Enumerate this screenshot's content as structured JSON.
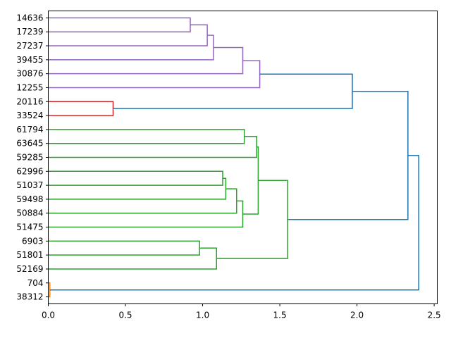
{
  "chart_data": {
    "type": "dendrogram",
    "orientation": "left",
    "xlim": [
      0,
      2.52
    ],
    "x_ticks": [
      0.0,
      0.5,
      1.0,
      1.5,
      2.0,
      2.5
    ],
    "x_tick_labels": [
      "0.0",
      "0.5",
      "1.0",
      "1.5",
      "2.0",
      "2.5"
    ],
    "title": "",
    "xlabel": "",
    "ylabel": "",
    "leaves": [
      "14636",
      "17239",
      "27237",
      "39455",
      "30876",
      "12255",
      "20116",
      "33524",
      "61794",
      "63645",
      "59285",
      "62996",
      "51037",
      "59498",
      "50884",
      "51475",
      "6903",
      "51801",
      "52169",
      "704",
      "38312"
    ],
    "colors": {
      "purple": "#9467bd",
      "red": "#d62728",
      "green": "#2ca02c",
      "orange": "#ff7f0e",
      "blue": "#1f77b4"
    },
    "merges": [
      {
        "left": [
          0
        ],
        "right": [
          1
        ],
        "height": 0.92,
        "color": "purple"
      },
      {
        "left": [
          0,
          1
        ],
        "right": [
          2
        ],
        "height": 1.03,
        "color": "purple"
      },
      {
        "left": [
          0,
          1,
          2
        ],
        "right": [
          3
        ],
        "height": 1.07,
        "color": "purple"
      },
      {
        "left": [
          0,
          1,
          2,
          3
        ],
        "right": [
          4
        ],
        "height": 1.26,
        "color": "purple"
      },
      {
        "left": [
          0,
          1,
          2,
          3,
          4
        ],
        "right": [
          5
        ],
        "height": 1.37,
        "color": "purple"
      },
      {
        "left": [
          6
        ],
        "right": [
          7
        ],
        "height": 0.42,
        "color": "red"
      },
      {
        "left": [
          0,
          1,
          2,
          3,
          4,
          5
        ],
        "right": [
          6,
          7
        ],
        "height": 1.97,
        "color": "blue"
      },
      {
        "left": [
          8
        ],
        "right": [
          9
        ],
        "height": 1.27,
        "color": "green"
      },
      {
        "left": [
          8,
          9
        ],
        "right": [
          10
        ],
        "height": 1.35,
        "color": "green"
      },
      {
        "left": [
          11
        ],
        "right": [
          12
        ],
        "height": 1.13,
        "color": "green"
      },
      {
        "left": [
          11,
          12
        ],
        "right": [
          13
        ],
        "height": 1.15,
        "color": "green"
      },
      {
        "left": [
          11,
          12,
          13
        ],
        "right": [
          14
        ],
        "height": 1.22,
        "color": "green"
      },
      {
        "left": [
          11,
          12,
          13,
          14
        ],
        "right": [
          15
        ],
        "height": 1.26,
        "color": "green"
      },
      {
        "left": [
          8,
          9,
          10
        ],
        "right": [
          11,
          12,
          13,
          14,
          15
        ],
        "height": 1.36,
        "color": "green"
      },
      {
        "left": [
          16
        ],
        "right": [
          17
        ],
        "height": 0.98,
        "color": "green"
      },
      {
        "left": [
          16,
          17
        ],
        "right": [
          18
        ],
        "height": 1.09,
        "color": "green"
      },
      {
        "left": [
          8,
          9,
          10,
          11,
          12,
          13,
          14,
          15
        ],
        "right": [
          16,
          17,
          18
        ],
        "height": 1.55,
        "color": "green"
      },
      {
        "left": [
          0,
          1,
          2,
          3,
          4,
          5,
          6,
          7
        ],
        "right": [
          8,
          9,
          10,
          11,
          12,
          13,
          14,
          15,
          16,
          17,
          18
        ],
        "height": 2.33,
        "color": "blue"
      },
      {
        "left": [
          19
        ],
        "right": [
          20
        ],
        "height": 0.01,
        "color": "orange"
      },
      {
        "left": [
          0,
          1,
          2,
          3,
          4,
          5,
          6,
          7,
          8,
          9,
          10,
          11,
          12,
          13,
          14,
          15,
          16,
          17,
          18
        ],
        "right": [
          19,
          20
        ],
        "height": 2.4,
        "color": "blue"
      }
    ]
  }
}
